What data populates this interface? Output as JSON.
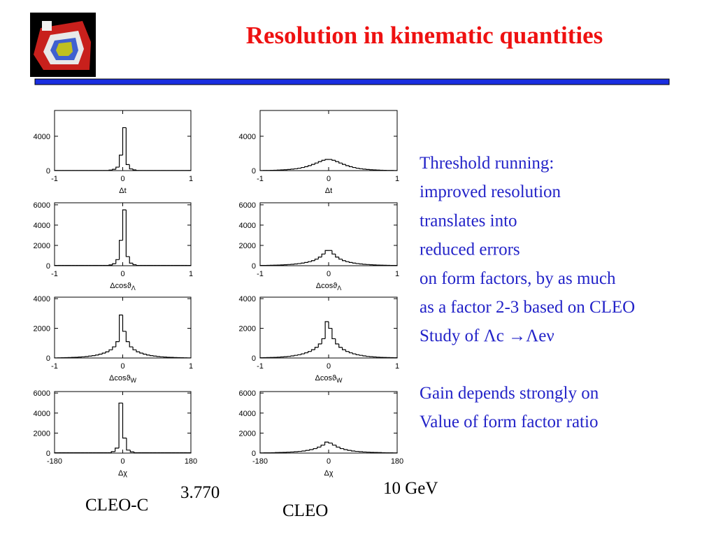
{
  "title": "Resolution in kinematic quantities",
  "text": {
    "paragraph1": [
      "Threshold running:",
      "improved resolution",
      "translates into",
      "reduced errors",
      "on form factors, by as much",
      "as a factor 2-3 based on CLEO",
      "Study of Λc →Λeν"
    ],
    "paragraph2": [
      "Gain depends strongly on",
      "Value of form factor ratio"
    ]
  },
  "labels": {
    "energy_left": "3.770",
    "experiment_left": "CLEO-C",
    "energy_right": "10 GeV",
    "experiment_right": "CLEO"
  },
  "chart_data": [
    {
      "type": "histogram",
      "xlabel": "Δt",
      "bins": [
        -1,
        -0.95,
        -0.9,
        -0.85,
        -0.8,
        -0.75,
        -0.7,
        -0.65,
        -0.6,
        -0.55,
        -0.5,
        -0.45,
        -0.4,
        -0.35,
        -0.3,
        -0.25,
        -0.2,
        -0.15,
        -0.1,
        -0.05,
        0,
        0.05,
        0.1,
        0.15,
        0.2,
        0.25,
        0.3,
        0.35,
        0.4,
        0.45,
        0.5,
        0.55,
        0.6,
        0.65,
        0.7,
        0.75,
        0.8,
        0.85,
        0.9,
        0.95,
        1
      ],
      "values": [
        20,
        20,
        20,
        20,
        20,
        20,
        20,
        20,
        20,
        20,
        20,
        20,
        20,
        20,
        20,
        20,
        60,
        150,
        400,
        1800,
        5000,
        700,
        200,
        80,
        20,
        20,
        20,
        20,
        20,
        20,
        20,
        20,
        20,
        20,
        20,
        20,
        20,
        20,
        20,
        20
      ],
      "xlim": [
        -1,
        1
      ],
      "xticks": [
        -1,
        0,
        1
      ],
      "ylim": [
        0,
        7000
      ],
      "yticks": [
        0,
        4000
      ]
    },
    {
      "type": "histogram",
      "xlabel": "Δt",
      "bins": [
        -1,
        -0.95,
        -0.9,
        -0.85,
        -0.8,
        -0.75,
        -0.7,
        -0.65,
        -0.6,
        -0.55,
        -0.5,
        -0.45,
        -0.4,
        -0.35,
        -0.3,
        -0.25,
        -0.2,
        -0.15,
        -0.1,
        -0.05,
        0,
        0.05,
        0.1,
        0.15,
        0.2,
        0.25,
        0.3,
        0.35,
        0.4,
        0.45,
        0.5,
        0.55,
        0.6,
        0.65,
        0.7,
        0.75,
        0.8,
        0.85,
        0.9,
        0.95,
        1
      ],
      "values": [
        15,
        20,
        25,
        35,
        45,
        60,
        80,
        100,
        130,
        170,
        220,
        280,
        360,
        460,
        580,
        720,
        880,
        1050,
        1200,
        1300,
        1300,
        1200,
        1050,
        880,
        720,
        580,
        460,
        360,
        280,
        220,
        170,
        130,
        100,
        80,
        60,
        45,
        35,
        25,
        20,
        15
      ],
      "xlim": [
        -1,
        1
      ],
      "xticks": [
        -1,
        0,
        1
      ],
      "ylim": [
        0,
        7000
      ],
      "yticks": [
        0,
        4000
      ]
    },
    {
      "type": "histogram",
      "xlabel": "Δcosϑ",
      "xlabel_sub": "Λ",
      "bins": [
        -1,
        -0.95,
        -0.9,
        -0.85,
        -0.8,
        -0.75,
        -0.7,
        -0.65,
        -0.6,
        -0.55,
        -0.5,
        -0.45,
        -0.4,
        -0.35,
        -0.3,
        -0.25,
        -0.2,
        -0.15,
        -0.1,
        -0.05,
        0,
        0.05,
        0.1,
        0.15,
        0.2,
        0.25,
        0.3,
        0.35,
        0.4,
        0.45,
        0.5,
        0.55,
        0.6,
        0.65,
        0.7,
        0.75,
        0.8,
        0.85,
        0.9,
        0.95,
        1
      ],
      "values": [
        30,
        30,
        30,
        30,
        30,
        30,
        30,
        30,
        30,
        30,
        30,
        30,
        30,
        30,
        30,
        30,
        80,
        200,
        600,
        2500,
        5500,
        900,
        250,
        100,
        30,
        30,
        30,
        30,
        30,
        30,
        30,
        30,
        30,
        30,
        30,
        30,
        30,
        30,
        30,
        30
      ],
      "xlim": [
        -1,
        1
      ],
      "xticks": [
        -1,
        0,
        1
      ],
      "ylim": [
        0,
        6200
      ],
      "yticks": [
        0,
        2000,
        4000,
        6000
      ]
    },
    {
      "type": "histogram",
      "xlabel": "Δcosϑ",
      "xlabel_sub": "Λ",
      "bins": [
        -1,
        -0.95,
        -0.9,
        -0.85,
        -0.8,
        -0.75,
        -0.7,
        -0.65,
        -0.6,
        -0.55,
        -0.5,
        -0.45,
        -0.4,
        -0.35,
        -0.3,
        -0.25,
        -0.2,
        -0.15,
        -0.1,
        -0.05,
        0,
        0.05,
        0.1,
        0.15,
        0.2,
        0.25,
        0.3,
        0.35,
        0.4,
        0.45,
        0.5,
        0.55,
        0.6,
        0.65,
        0.7,
        0.75,
        0.8,
        0.85,
        0.9,
        0.95,
        1
      ],
      "values": [
        25,
        30,
        35,
        45,
        55,
        65,
        80,
        95,
        115,
        140,
        170,
        210,
        260,
        320,
        400,
        500,
        650,
        850,
        1150,
        1500,
        1500,
        1150,
        850,
        650,
        500,
        400,
        320,
        260,
        210,
        170,
        140,
        115,
        95,
        80,
        65,
        55,
        45,
        35,
        30,
        25
      ],
      "xlim": [
        -1,
        1
      ],
      "xticks": [
        -1,
        0,
        1
      ],
      "ylim": [
        0,
        6200
      ],
      "yticks": [
        0,
        2000,
        4000,
        6000
      ]
    },
    {
      "type": "histogram",
      "xlabel": "Δcosϑ",
      "xlabel_sub": "W",
      "bins": [
        -1,
        -0.95,
        -0.9,
        -0.85,
        -0.8,
        -0.75,
        -0.7,
        -0.65,
        -0.6,
        -0.55,
        -0.5,
        -0.45,
        -0.4,
        -0.35,
        -0.3,
        -0.25,
        -0.2,
        -0.15,
        -0.1,
        -0.05,
        0,
        0.05,
        0.1,
        0.15,
        0.2,
        0.25,
        0.3,
        0.35,
        0.4,
        0.45,
        0.5,
        0.55,
        0.6,
        0.65,
        0.7,
        0.75,
        0.8,
        0.85,
        0.9,
        0.95,
        1
      ],
      "values": [
        10,
        15,
        20,
        25,
        30,
        40,
        50,
        65,
        80,
        100,
        130,
        160,
        200,
        260,
        330,
        420,
        550,
        750,
        1100,
        2900,
        1800,
        1100,
        750,
        550,
        420,
        330,
        260,
        200,
        160,
        130,
        100,
        80,
        65,
        50,
        40,
        30,
        25,
        20,
        15,
        10
      ],
      "xlim": [
        -1,
        1
      ],
      "xticks": [
        -1,
        0,
        1
      ],
      "ylim": [
        0,
        4100
      ],
      "yticks": [
        0,
        2000,
        4000
      ]
    },
    {
      "type": "histogram",
      "xlabel": "Δcosϑ",
      "xlabel_sub": "W",
      "bins": [
        -1,
        -0.95,
        -0.9,
        -0.85,
        -0.8,
        -0.75,
        -0.7,
        -0.65,
        -0.6,
        -0.55,
        -0.5,
        -0.45,
        -0.4,
        -0.35,
        -0.3,
        -0.25,
        -0.2,
        -0.15,
        -0.1,
        -0.05,
        0,
        0.05,
        0.1,
        0.15,
        0.2,
        0.25,
        0.3,
        0.35,
        0.4,
        0.45,
        0.5,
        0.55,
        0.6,
        0.65,
        0.7,
        0.75,
        0.8,
        0.85,
        0.9,
        0.95,
        1
      ],
      "values": [
        18,
        22,
        28,
        35,
        45,
        55,
        70,
        90,
        110,
        140,
        180,
        220,
        280,
        350,
        440,
        560,
        720,
        950,
        1300,
        2450,
        2000,
        1300,
        950,
        720,
        560,
        440,
        350,
        280,
        220,
        180,
        140,
        110,
        90,
        70,
        55,
        45,
        35,
        28,
        22,
        18
      ],
      "xlim": [
        -1,
        1
      ],
      "xticks": [
        -1,
        0,
        1
      ],
      "ylim": [
        0,
        4100
      ],
      "yticks": [
        0,
        2000,
        4000
      ]
    },
    {
      "type": "histogram",
      "xlabel": "Δχ",
      "bins": [
        -180,
        -170,
        -160,
        -150,
        -140,
        -130,
        -120,
        -110,
        -100,
        -90,
        -80,
        -70,
        -60,
        -50,
        -40,
        -30,
        -20,
        -10,
        0,
        10,
        20,
        30,
        40,
        50,
        60,
        70,
        80,
        90,
        100,
        110,
        120,
        130,
        140,
        150,
        160,
        170,
        180
      ],
      "values": [
        40,
        40,
        40,
        40,
        40,
        40,
        40,
        40,
        40,
        40,
        40,
        40,
        40,
        40,
        40,
        150,
        500,
        5000,
        1500,
        300,
        120,
        40,
        40,
        40,
        40,
        40,
        40,
        40,
        40,
        40,
        40,
        40,
        40,
        40,
        40,
        40
      ],
      "xlim": [
        -180,
        180
      ],
      "xticks": [
        -180,
        0,
        180
      ],
      "ylim": [
        0,
        6150
      ],
      "yticks": [
        0,
        2000,
        4000,
        6000
      ]
    },
    {
      "type": "histogram",
      "xlabel": "Δχ",
      "bins": [
        -180,
        -170,
        -160,
        -150,
        -140,
        -130,
        -120,
        -110,
        -100,
        -90,
        -80,
        -70,
        -60,
        -50,
        -40,
        -30,
        -20,
        -10,
        0,
        10,
        20,
        30,
        40,
        50,
        60,
        70,
        80,
        90,
        100,
        110,
        120,
        130,
        140,
        150,
        160,
        170,
        180
      ],
      "values": [
        20,
        25,
        30,
        40,
        50,
        60,
        75,
        90,
        110,
        140,
        170,
        210,
        270,
        350,
        450,
        600,
        800,
        1100,
        1000,
        800,
        600,
        450,
        350,
        270,
        210,
        170,
        140,
        110,
        90,
        75,
        60,
        50,
        40,
        30,
        25,
        20
      ],
      "xlim": [
        -180,
        180
      ],
      "xticks": [
        -180,
        0,
        180
      ],
      "ylim": [
        0,
        6150
      ],
      "yticks": [
        0,
        2000,
        4000,
        6000
      ]
    }
  ]
}
